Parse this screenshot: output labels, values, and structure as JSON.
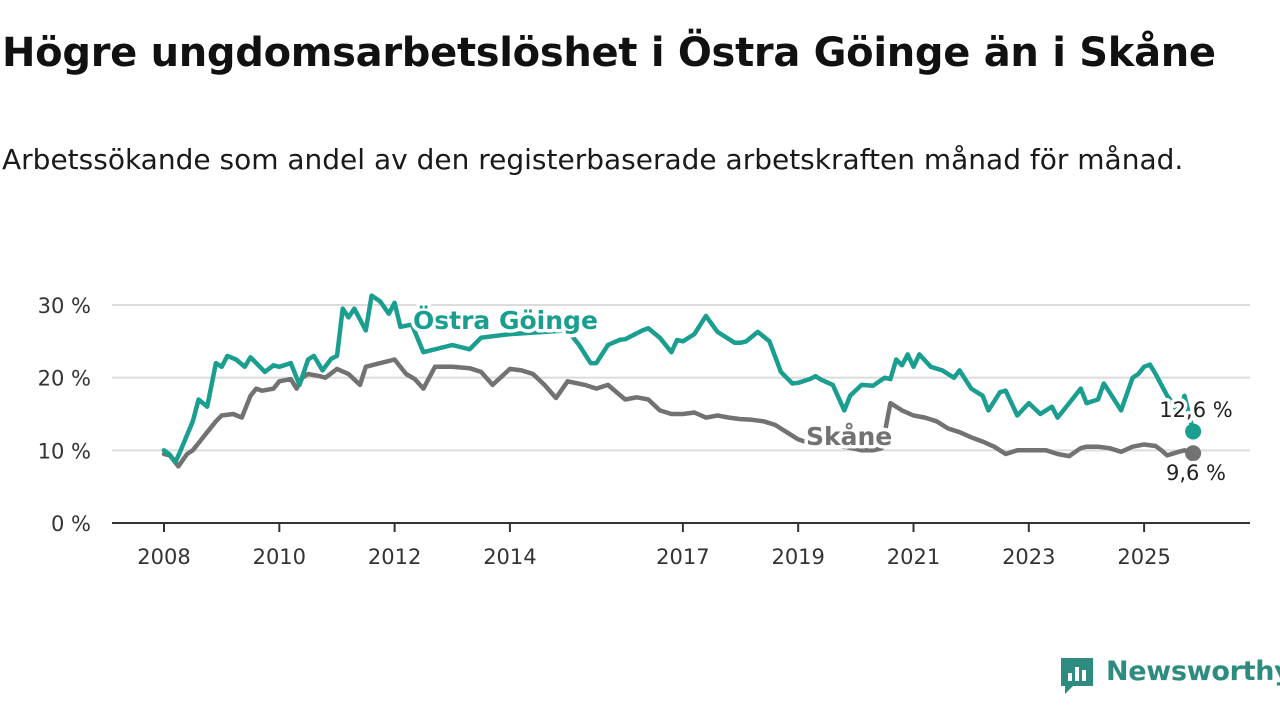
{
  "title": "Högre ungdomsarbetslöshet i Östra Göinge än i Skåne",
  "subtitle": "Arbetssökande som andel av den registerbaserade arbetskraften månad för månad.",
  "brand": {
    "name": "Newsworthy",
    "color": "#2e8b80"
  },
  "chart_data": {
    "type": "line",
    "title": "Högre ungdomsarbetslöshet i Östra Göinge än i Skåne",
    "xlabel": "",
    "ylabel": "",
    "xlim": [
      2008.0,
      2025.9
    ],
    "ylim": [
      0,
      30
    ],
    "y_ticks": [
      0,
      10,
      20,
      30
    ],
    "y_tick_labels": [
      "0 %",
      "10 %",
      "20 %",
      "30 %"
    ],
    "x_ticks": [
      2008,
      2010,
      2012,
      2014,
      2017,
      2019,
      2021,
      2023,
      2025
    ],
    "x_tick_labels": [
      "2008",
      "2010",
      "2012",
      "2014",
      "2017",
      "2019",
      "2021",
      "2023",
      "2025"
    ],
    "grid": true,
    "series": [
      {
        "name": "Östra Göinge",
        "label": "Östra Göinge",
        "color": "#1a9e8f",
        "end_label": "12,6 %",
        "x": [
          2008.0,
          2008.1,
          2008.2,
          2008.3,
          2008.5,
          2008.6,
          2008.75,
          2008.9,
          2009.0,
          2009.1,
          2009.25,
          2009.4,
          2009.5,
          2009.6,
          2009.75,
          2009.9,
          2010.0,
          2010.2,
          2010.35,
          2010.5,
          2010.6,
          2010.75,
          2010.9,
          2011.0,
          2011.1,
          2011.2,
          2011.3,
          2011.5,
          2011.6,
          2011.75,
          2011.9,
          2012.0,
          2012.1,
          2012.3,
          2012.5,
          2013.0,
          2013.3,
          2013.5,
          2014.0,
          2015.0,
          2015.2,
          2015.4,
          2015.5,
          2015.7,
          2015.9,
          2016.0,
          2016.3,
          2016.4,
          2016.6,
          2016.8,
          2016.9,
          2017.0,
          2017.2,
          2017.4,
          2017.6,
          2017.7,
          2017.9,
          2018.0,
          2018.1,
          2018.3,
          2018.5,
          2018.7,
          2018.9,
          2019.0,
          2019.2,
          2019.3,
          2019.4,
          2019.6,
          2019.8,
          2019.9,
          2020.1,
          2020.3,
          2020.5,
          2020.6,
          2020.7,
          2020.8,
          2020.9,
          2021.0,
          2021.1,
          2021.3,
          2021.5,
          2021.7,
          2021.8,
          2022.0,
          2022.2,
          2022.3,
          2022.5,
          2022.6,
          2022.8,
          2023.0,
          2023.2,
          2023.4,
          2023.5,
          2023.7,
          2023.9,
          2024.0,
          2024.2,
          2024.3,
          2024.4,
          2024.6,
          2024.8,
          2024.9,
          2025.0,
          2025.1,
          2025.2,
          2025.4,
          2025.5,
          2025.6,
          2025.7,
          2025.85
        ],
        "values": [
          10.0,
          9.4,
          8.4,
          10.2,
          14.0,
          17.0,
          16.0,
          22.0,
          21.5,
          23.0,
          22.5,
          21.5,
          22.8,
          22.0,
          20.8,
          21.7,
          21.5,
          22.0,
          19.0,
          22.5,
          23.0,
          21.0,
          22.6,
          23.0,
          29.5,
          28.3,
          29.5,
          26.5,
          31.3,
          30.5,
          28.8,
          30.3,
          27.0,
          27.3,
          23.5,
          24.5,
          23.9,
          25.5,
          26.0,
          26.5,
          24.5,
          22.0,
          22.0,
          24.5,
          25.2,
          25.3,
          26.5,
          26.8,
          25.5,
          23.5,
          25.2,
          25.0,
          26.0,
          28.5,
          26.3,
          25.8,
          24.8,
          24.8,
          25.0,
          26.3,
          25.0,
          20.8,
          19.2,
          19.3,
          19.8,
          20.2,
          19.7,
          19.0,
          15.5,
          17.5,
          19.0,
          18.9,
          20.0,
          19.8,
          22.5,
          21.7,
          23.2,
          21.5,
          23.2,
          21.5,
          21.0,
          20.0,
          21.0,
          18.5,
          17.5,
          15.5,
          18.0,
          18.2,
          14.8,
          16.5,
          15.0,
          16.0,
          14.5,
          16.5,
          18.5,
          16.5,
          17.0,
          19.2,
          18.0,
          15.5,
          20.0,
          20.5,
          21.5,
          21.8,
          20.5,
          17.5,
          16.5,
          15.0,
          17.5,
          12.6
        ]
      },
      {
        "name": "Skåne",
        "label": "Skåne",
        "color": "#727272",
        "end_label": "9,6 %",
        "x": [
          2008.0,
          2008.1,
          2008.25,
          2008.4,
          2008.5,
          2008.65,
          2008.75,
          2008.9,
          2009.0,
          2009.2,
          2009.35,
          2009.5,
          2009.6,
          2009.7,
          2009.9,
          2010.0,
          2010.2,
          2010.3,
          2010.4,
          2010.5,
          2010.7,
          2010.8,
          2011.0,
          2011.2,
          2011.4,
          2011.5,
          2011.75,
          2012.0,
          2012.2,
          2012.35,
          2012.5,
          2012.7,
          2013.0,
          2013.3,
          2013.5,
          2013.7,
          2014.0,
          2014.2,
          2014.4,
          2014.6,
          2014.8,
          2015.0,
          2015.3,
          2015.5,
          2015.7,
          2016.0,
          2016.2,
          2016.4,
          2016.6,
          2016.8,
          2017.0,
          2017.2,
          2017.4,
          2017.6,
          2017.8,
          2018.0,
          2018.2,
          2018.4,
          2018.6,
          2018.8,
          2019.0,
          2019.2,
          2019.4,
          2019.6,
          2019.8,
          2020.0,
          2020.1,
          2020.3,
          2020.45,
          2020.6,
          2020.8,
          2021.0,
          2021.2,
          2021.4,
          2021.6,
          2021.8,
          2022.0,
          2022.2,
          2022.4,
          2022.6,
          2022.8,
          2023.0,
          2023.3,
          2023.5,
          2023.7,
          2023.9,
          2024.0,
          2024.2,
          2024.4,
          2024.6,
          2024.8,
          2025.0,
          2025.2,
          2025.3,
          2025.4,
          2025.6,
          2025.7,
          2025.85
        ],
        "values": [
          9.5,
          9.3,
          7.8,
          9.5,
          10.0,
          11.5,
          12.5,
          14.0,
          14.8,
          15.0,
          14.5,
          17.5,
          18.5,
          18.2,
          18.5,
          19.5,
          19.8,
          18.5,
          20.0,
          20.5,
          20.2,
          20.0,
          21.2,
          20.5,
          19.0,
          21.5,
          22.0,
          22.5,
          20.5,
          19.8,
          18.5,
          21.5,
          21.5,
          21.3,
          20.8,
          19.0,
          21.2,
          21.0,
          20.5,
          19.0,
          17.2,
          19.5,
          19.0,
          18.5,
          19.0,
          17.0,
          17.3,
          17.0,
          15.5,
          15.0,
          15.0,
          15.2,
          14.5,
          14.8,
          14.5,
          14.3,
          14.2,
          14.0,
          13.5,
          12.5,
          11.5,
          11.0,
          11.5,
          11.0,
          10.5,
          10.2,
          10.0,
          10.0,
          10.3,
          16.5,
          15.5,
          14.8,
          14.5,
          14.0,
          13.0,
          12.5,
          11.8,
          11.2,
          10.5,
          9.5,
          10.0,
          10.0,
          10.0,
          9.5,
          9.2,
          10.3,
          10.5,
          10.5,
          10.3,
          9.8,
          10.5,
          10.8,
          10.6,
          10.0,
          9.3,
          9.8,
          10.0,
          9.6
        ]
      }
    ]
  }
}
